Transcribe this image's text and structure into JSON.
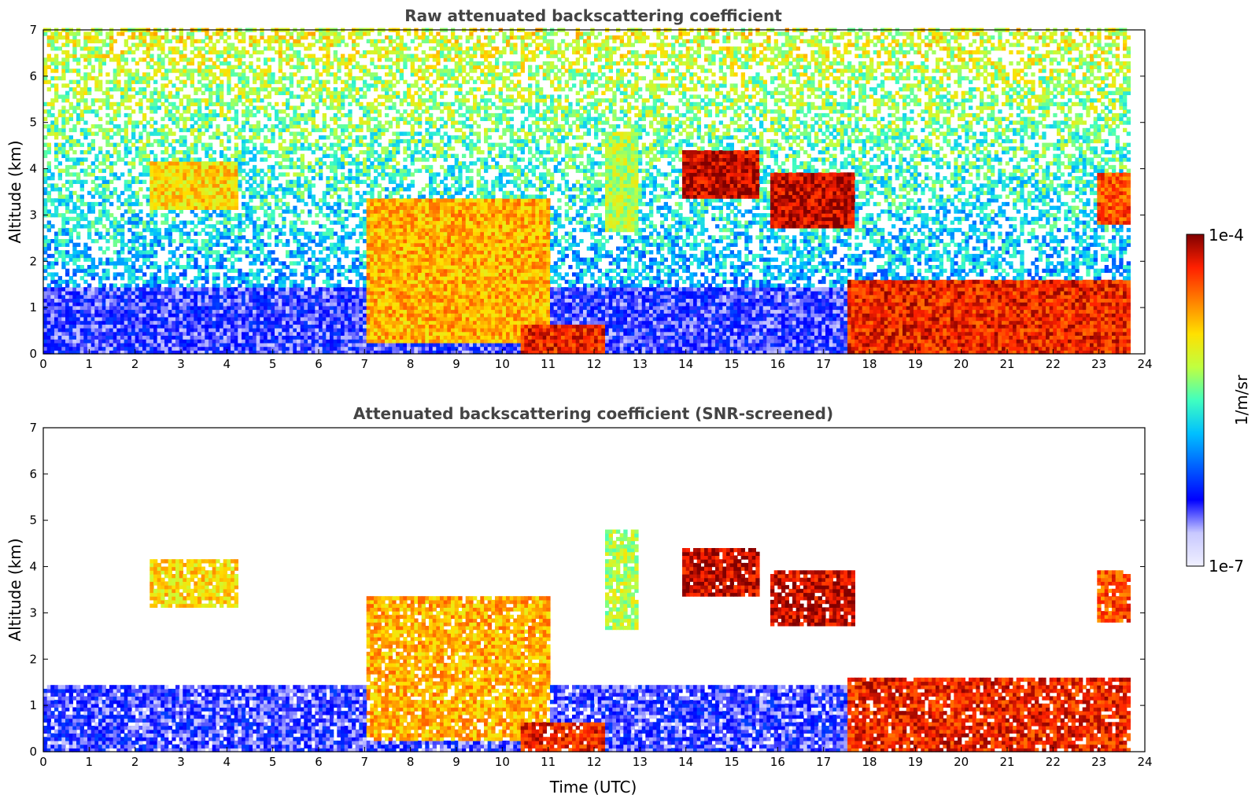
{
  "chart_data": [
    {
      "type": "heatmap",
      "title": "Raw attenuated backscattering coefficient",
      "xlabel": "",
      "ylabel": "Altitude (km)",
      "xlim": [
        0,
        24
      ],
      "ylim": [
        0,
        7
      ],
      "xticks": [
        "0",
        "1",
        "2",
        "3",
        "4",
        "5",
        "6",
        "7",
        "8",
        "9",
        "10",
        "11",
        "12",
        "13",
        "14",
        "15",
        "16",
        "17",
        "18",
        "19",
        "20",
        "21",
        "22",
        "23",
        "24"
      ],
      "yticks": [
        "0",
        "1",
        "2",
        "3",
        "4",
        "5",
        "6",
        "7"
      ],
      "data_end_time": 23.65,
      "features": [
        {
          "name": "boundary layer",
          "t0": 0,
          "t1": 23.65,
          "base": 0,
          "top": 1.4,
          "level": 0.18
        },
        {
          "name": "cloud 2-4h",
          "t0": 2.3,
          "t1": 4.2,
          "base": 3.1,
          "top": 4.1,
          "level": 0.7
        },
        {
          "name": "descending aerosol layer 7-11h",
          "t0": 7.0,
          "t1": 11.0,
          "base": 0.2,
          "top": 3.3,
          "level": 0.75
        },
        {
          "name": "layer 10.5-12h",
          "t0": 10.4,
          "t1": 12.2,
          "base": 0,
          "top": 0.6,
          "level": 0.9
        },
        {
          "name": "cloud 12.4h",
          "t0": 12.2,
          "t1": 12.9,
          "base": 2.6,
          "top": 4.8,
          "level": 0.6
        },
        {
          "name": "cloud 14-16h",
          "t0": 13.9,
          "t1": 15.6,
          "base": 3.3,
          "top": 4.4,
          "level": 0.95
        },
        {
          "name": "cloud 16-17.6h",
          "t0": 15.8,
          "t1": 17.6,
          "base": 2.7,
          "top": 3.9,
          "level": 0.95
        },
        {
          "name": "low cloud 17.5-23.6h",
          "t0": 17.5,
          "t1": 23.6,
          "base": 0,
          "top": 1.6,
          "level": 0.9
        },
        {
          "name": "cloud 23h",
          "t0": 22.9,
          "t1": 23.6,
          "base": 2.8,
          "top": 3.9,
          "level": 0.85
        }
      ]
    },
    {
      "type": "heatmap",
      "title": "Attenuated backscattering coefficient (SNR-screened)",
      "xlabel": "Time (UTC)",
      "ylabel": "Altitude (km)",
      "xlim": [
        0,
        24
      ],
      "ylim": [
        0,
        7
      ],
      "xticks": [
        "0",
        "1",
        "2",
        "3",
        "4",
        "5",
        "6",
        "7",
        "8",
        "9",
        "10",
        "11",
        "12",
        "13",
        "14",
        "15",
        "16",
        "17",
        "18",
        "19",
        "20",
        "21",
        "22",
        "23",
        "24"
      ],
      "yticks": [
        "0",
        "1",
        "2",
        "3",
        "4",
        "5",
        "6",
        "7"
      ],
      "data_end_time": 23.65
    }
  ],
  "colorbar": {
    "label": "1/m/sr",
    "max_label": "1e-4",
    "min_label": "1e-7",
    "vmin": 1e-07,
    "vmax": 0.0001,
    "scale": "log",
    "colormap": [
      "#f0f0ff",
      "#c8c8ff",
      "#0000ff",
      "#0060ff",
      "#00c0ff",
      "#40ffc0",
      "#c0ff40",
      "#ffe000",
      "#ff8000",
      "#ff2000",
      "#800000"
    ]
  }
}
